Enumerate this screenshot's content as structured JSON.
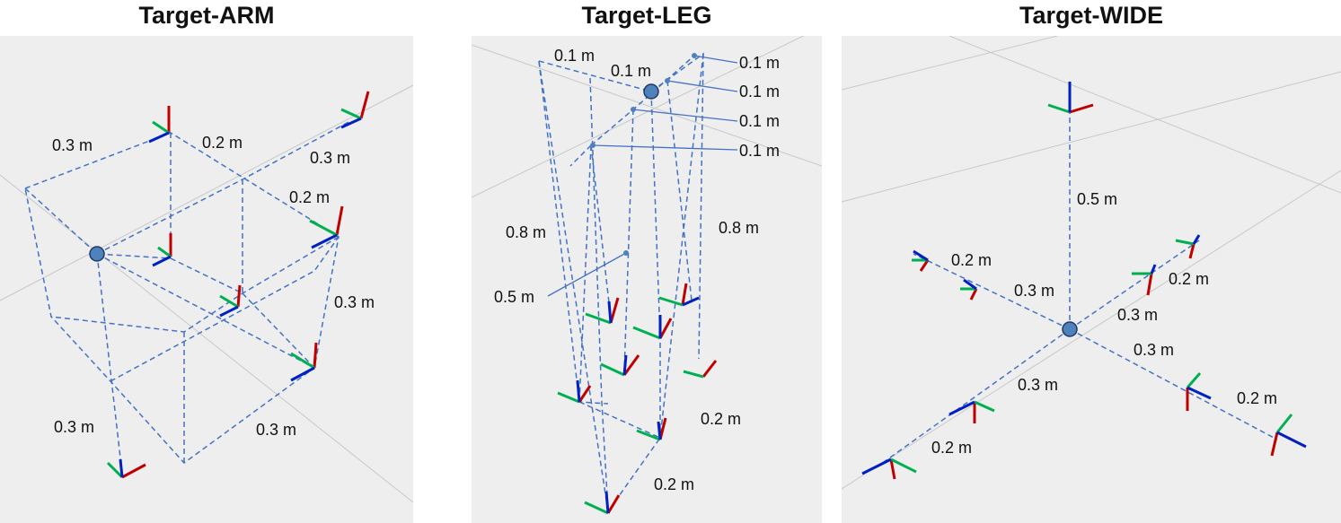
{
  "titles": {
    "arm": "Target-ARM",
    "leg": "Target-LEG",
    "wide": "Target-WIDE"
  },
  "arm_labels": [
    "0.3 m",
    "0.2 m",
    "0.3 m",
    "0.2 m",
    "0.3 m",
    "0.3 m",
    "0.3 m"
  ],
  "leg_labels": [
    "0.1 m",
    "0.1 m",
    "0.1 m",
    "0.1 m",
    "0.1 m",
    "0.1 m",
    "0.8 m",
    "0.8 m",
    "0.5 m",
    "0.2 m",
    "0.2 m"
  ],
  "wide_labels": [
    "0.5 m",
    "0.2 m",
    "0.3 m",
    "0.2 m",
    "0.3 m",
    "0.3 m",
    "0.3 m",
    "0.2 m",
    "0.2 m"
  ],
  "colors": {
    "dashed_line": "#4472c4",
    "leader_line": "#4472c4",
    "marker_fill": "#4f81bd",
    "axis_x": "#c00000",
    "axis_y": "#00b050",
    "axis_z": "#0020c0",
    "panel_bg": "#eeeeee",
    "grid": "#c8c8c8"
  }
}
